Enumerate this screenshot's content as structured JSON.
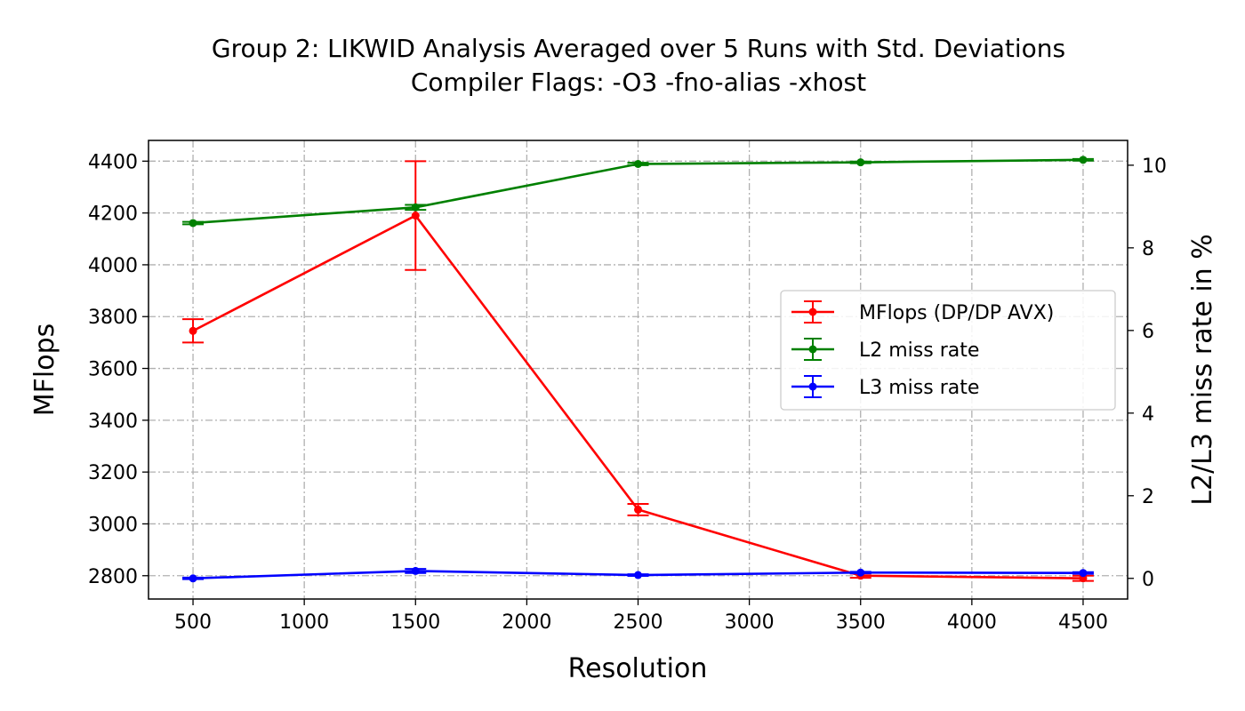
{
  "chart_data": {
    "type": "line",
    "title": "Group 2: LIKWID Analysis Averaged over 5 Runs with Std. Deviations",
    "subtitle": "Compiler Flags: -O3 -fno-alias -xhost",
    "xlabel": "Resolution",
    "ylabel": "MFlops",
    "y2label": "L2/L3 miss rate in %",
    "x": [
      500,
      1500,
      2500,
      3500,
      4500
    ],
    "xlim": [
      300,
      4700
    ],
    "ylim": [
      2710,
      4480
    ],
    "y2lim": [
      -0.5,
      10.6
    ],
    "x_ticks": [
      "500",
      "1000",
      "1500",
      "2000",
      "2500",
      "3000",
      "3500",
      "4000",
      "4500"
    ],
    "y_ticks": [
      "2800",
      "3000",
      "3200",
      "3400",
      "3600",
      "3800",
      "4000",
      "4200",
      "4400"
    ],
    "y2_ticks": [
      "0",
      "2",
      "4",
      "6",
      "8",
      "10"
    ],
    "grid": true,
    "legend_position": "center-right",
    "series": [
      {
        "name": "MFlops (DP/DP AVX)",
        "axis": "left",
        "color": "#ff0000",
        "values": [
          3745,
          4190,
          3055,
          2800,
          2790
        ],
        "errors": [
          45,
          210,
          22,
          8,
          10
        ]
      },
      {
        "name": "L2 miss rate",
        "axis": "right",
        "color": "#008000",
        "values": [
          8.6,
          8.98,
          10.03,
          10.07,
          10.13
        ],
        "errors": [
          0.03,
          0.06,
          0.03,
          0.02,
          0.02
        ]
      },
      {
        "name": "L3 miss rate",
        "axis": "right",
        "color": "#0000ff",
        "values": [
          0.0,
          0.18,
          0.08,
          0.14,
          0.13
        ],
        "errors": [
          0.02,
          0.05,
          0.02,
          0.02,
          0.02
        ]
      }
    ]
  }
}
